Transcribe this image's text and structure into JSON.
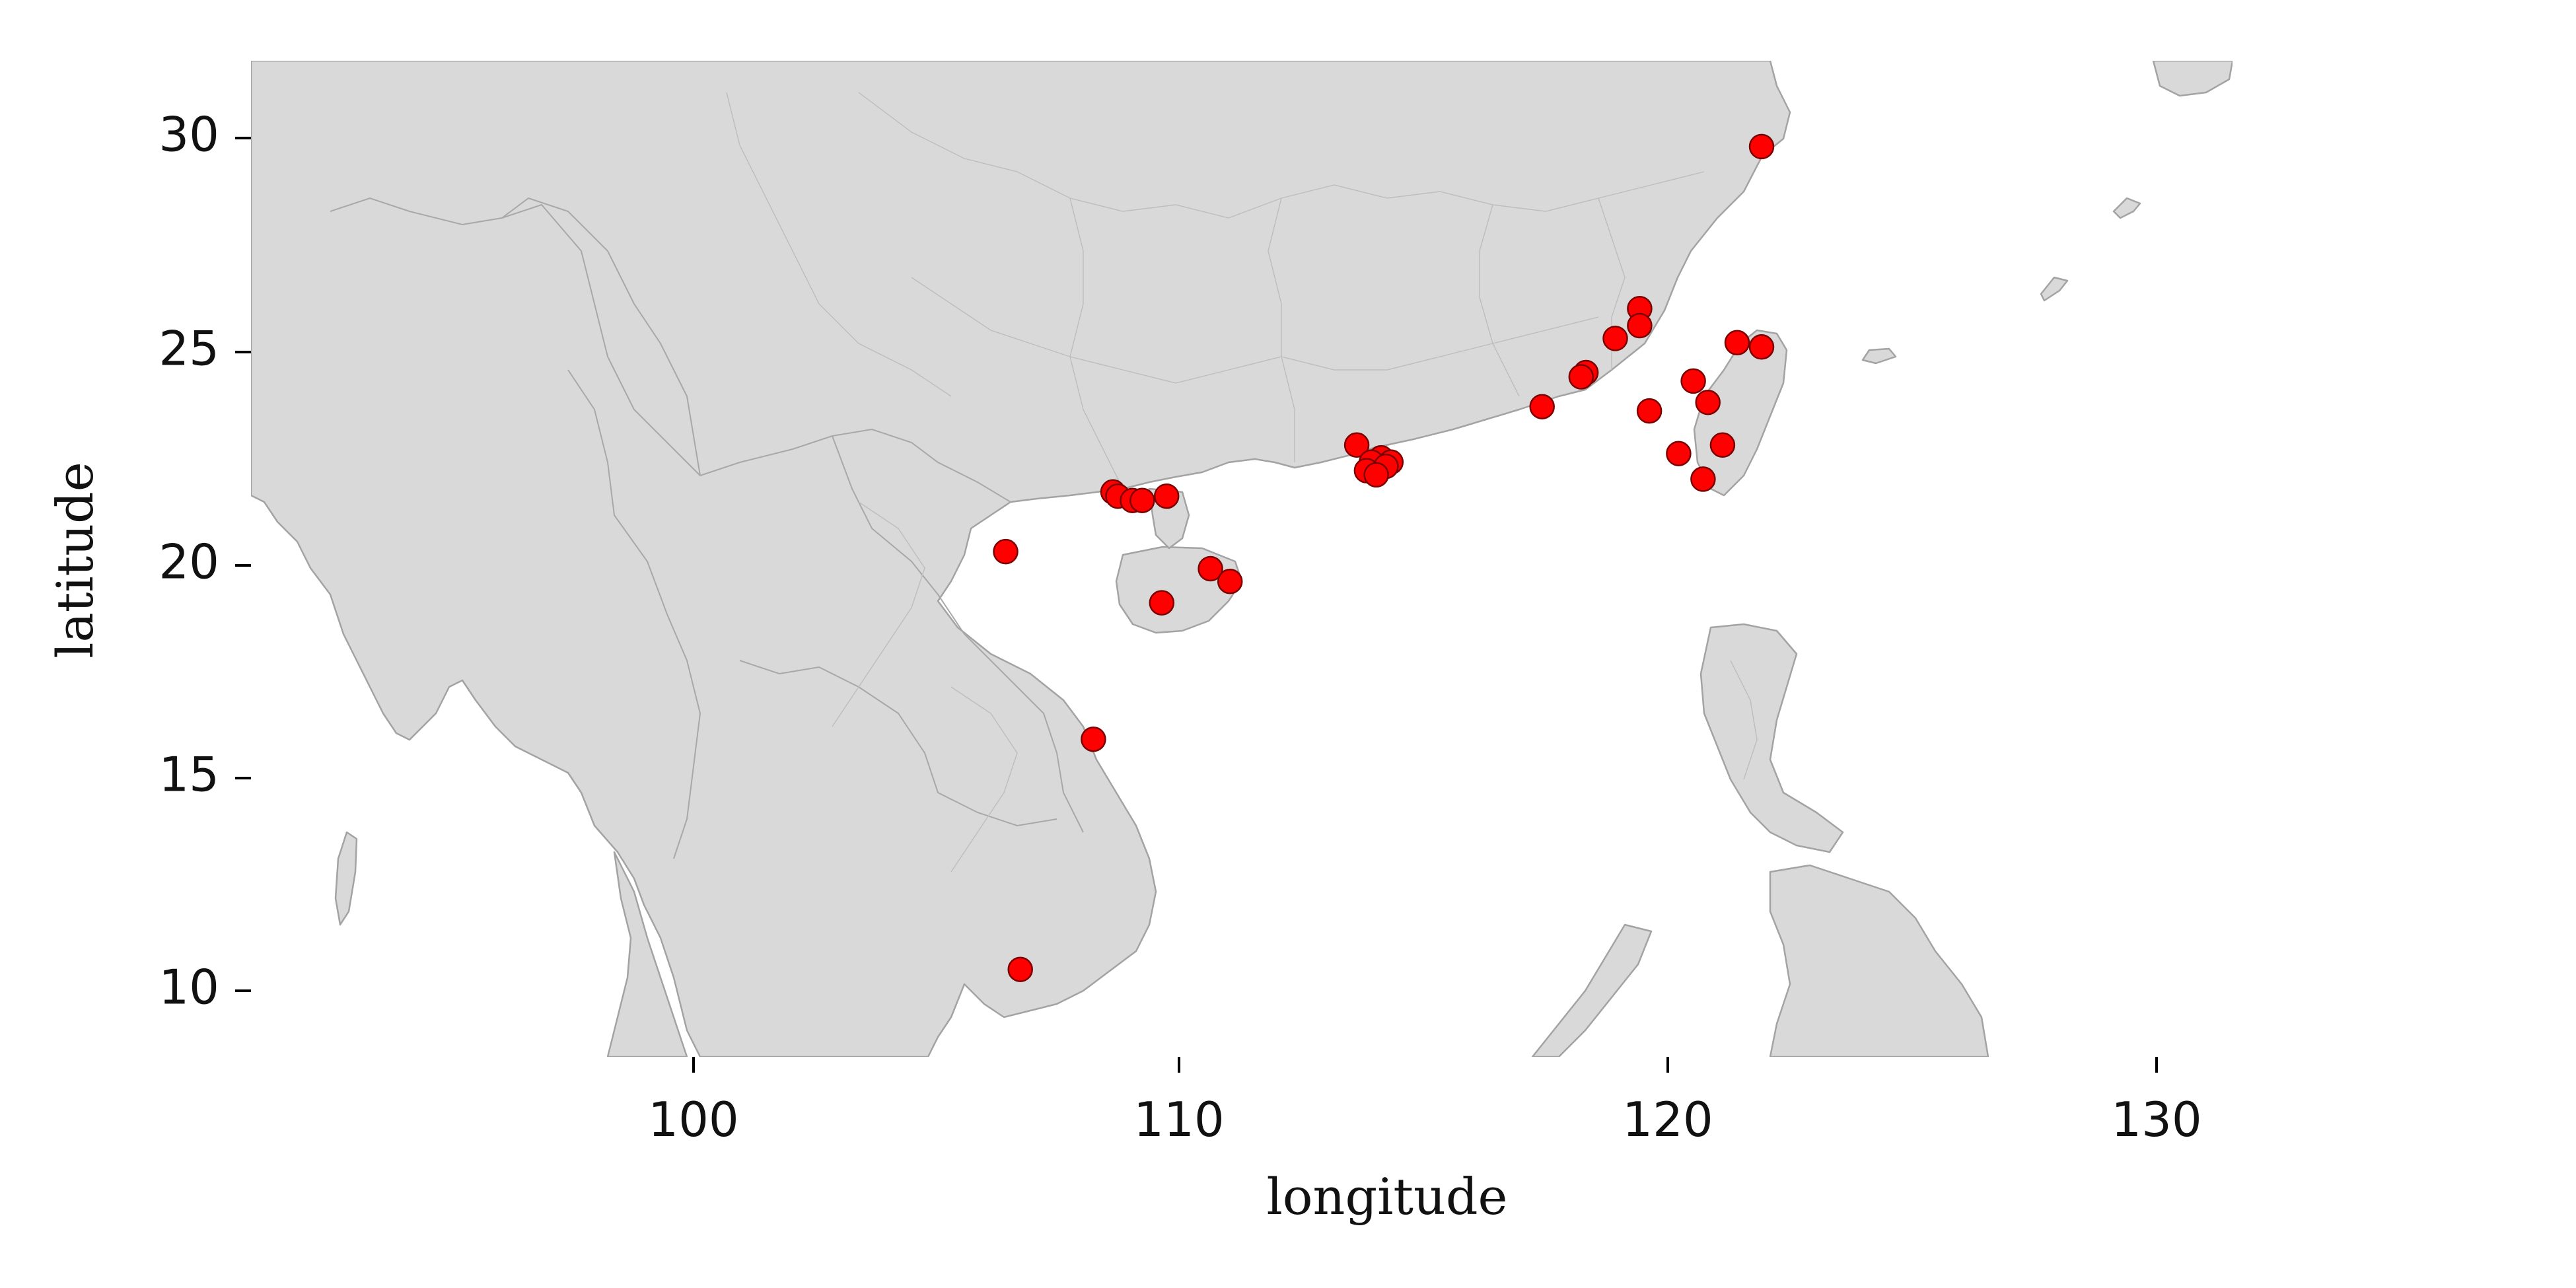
{
  "map": {
    "colors": {
      "land": "#d9d9d9",
      "border": "#a3a3a3",
      "ocean": "#ffffff",
      "marker_fill": "#ff0000",
      "marker_edge": "#7a0000"
    },
    "axes": {
      "x_label": "longitude",
      "y_label": "latitude",
      "x_range": [
        90.0,
        137.5
      ],
      "y_range": [
        8.3,
        31.8
      ],
      "x_ticks": [
        {
          "value": 100,
          "label": "100"
        },
        {
          "value": 110,
          "label": "110"
        },
        {
          "value": 120,
          "label": "120"
        },
        {
          "value": 130,
          "label": "130"
        }
      ],
      "y_ticks": [
        {
          "value": 30,
          "label": "30"
        },
        {
          "value": 25,
          "label": "25"
        },
        {
          "value": 20,
          "label": "20"
        },
        {
          "value": 15,
          "label": "15"
        },
        {
          "value": 10,
          "label": "10"
        }
      ]
    },
    "points": [
      {
        "lon": 121.9,
        "lat": 29.8
      },
      {
        "lon": 119.4,
        "lat": 26.0
      },
      {
        "lon": 119.4,
        "lat": 25.6
      },
      {
        "lon": 118.9,
        "lat": 25.3
      },
      {
        "lon": 118.3,
        "lat": 24.5
      },
      {
        "lon": 118.2,
        "lat": 24.4
      },
      {
        "lon": 117.4,
        "lat": 23.7
      },
      {
        "lon": 119.6,
        "lat": 23.6
      },
      {
        "lon": 121.4,
        "lat": 25.2
      },
      {
        "lon": 121.9,
        "lat": 25.1
      },
      {
        "lon": 120.5,
        "lat": 24.3
      },
      {
        "lon": 120.8,
        "lat": 23.8
      },
      {
        "lon": 121.1,
        "lat": 22.8
      },
      {
        "lon": 120.2,
        "lat": 22.6
      },
      {
        "lon": 120.7,
        "lat": 22.0
      },
      {
        "lon": 113.6,
        "lat": 22.8
      },
      {
        "lon": 114.1,
        "lat": 22.5
      },
      {
        "lon": 114.3,
        "lat": 22.4
      },
      {
        "lon": 113.9,
        "lat": 22.4
      },
      {
        "lon": 114.2,
        "lat": 22.3
      },
      {
        "lon": 113.8,
        "lat": 22.2
      },
      {
        "lon": 114.0,
        "lat": 22.1
      },
      {
        "lon": 108.6,
        "lat": 21.7
      },
      {
        "lon": 108.7,
        "lat": 21.6
      },
      {
        "lon": 109.0,
        "lat": 21.5
      },
      {
        "lon": 109.2,
        "lat": 21.5
      },
      {
        "lon": 109.7,
        "lat": 21.6
      },
      {
        "lon": 106.4,
        "lat": 20.3
      },
      {
        "lon": 110.6,
        "lat": 19.9
      },
      {
        "lon": 111.0,
        "lat": 19.6
      },
      {
        "lon": 109.6,
        "lat": 19.1
      },
      {
        "lon": 108.2,
        "lat": 15.9
      },
      {
        "lon": 106.7,
        "lat": 10.5
      }
    ]
  }
}
